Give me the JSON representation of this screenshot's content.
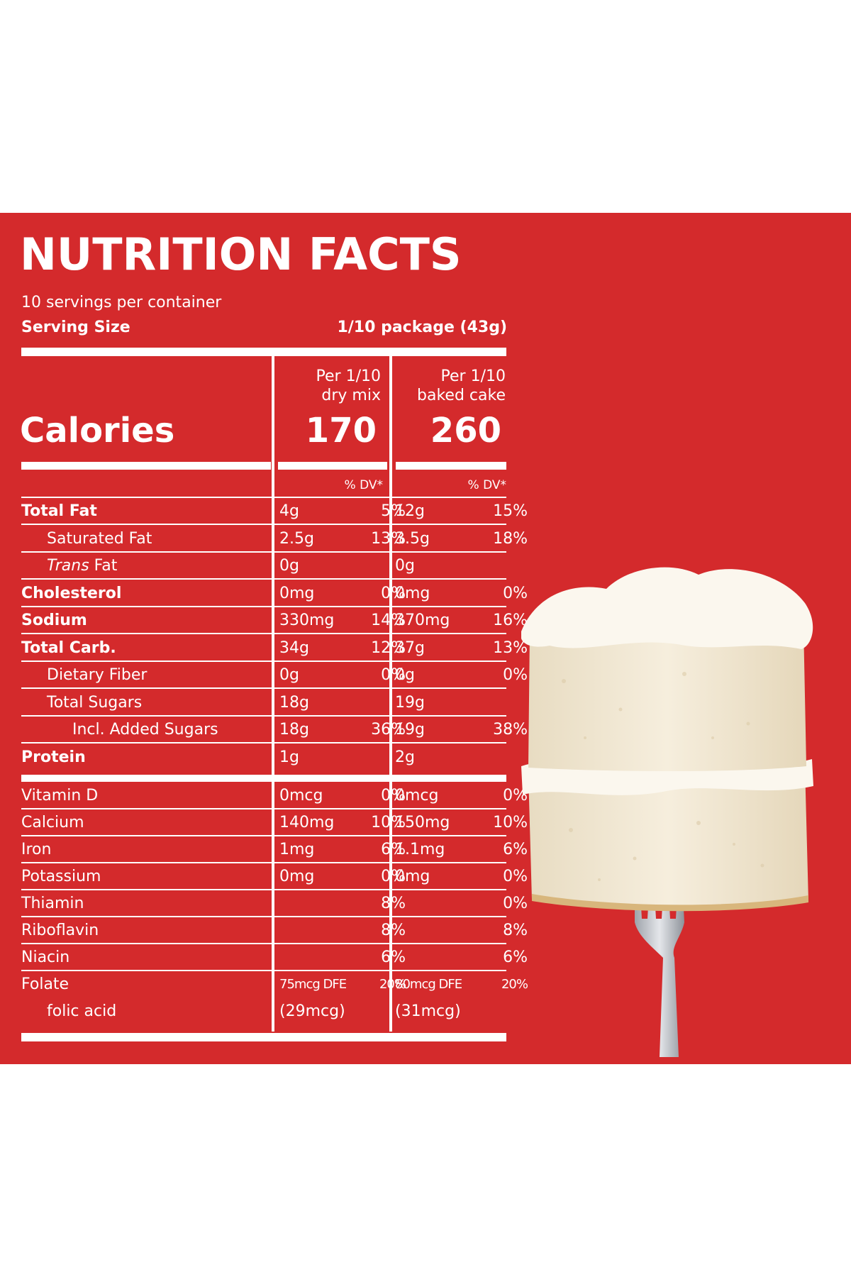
{
  "title": "NUTRITION  FACTS",
  "servings_per_container": "10 servings per container",
  "serving_size_label": "Serving Size",
  "serving_size_value": "1/10 package (43g)",
  "columns": [
    {
      "head_line1": "Per 1/10",
      "head_line2": "dry mix",
      "calories": "170"
    },
    {
      "head_line1": "Per 1/10",
      "head_line2": "baked cake",
      "calories": "260"
    }
  ],
  "calories_label": "Calories",
  "dv_header": "% DV*",
  "nutrients": [
    {
      "name": "Total Fat",
      "style": "bold",
      "indent": 0,
      "dry_amount": "4g",
      "dry_dv": "5%",
      "baked_amount": "12g",
      "baked_dv": "15%"
    },
    {
      "name": "Saturated Fat",
      "style": "normal",
      "indent": 1,
      "dry_amount": "2.5g",
      "dry_dv": "13%",
      "baked_amount": "3.5g",
      "baked_dv": "18%"
    },
    {
      "name_italic": "Trans",
      "name": " Fat",
      "style": "normal",
      "indent": 1,
      "dry_amount": "0g",
      "dry_dv": "",
      "baked_amount": "0g",
      "baked_dv": ""
    },
    {
      "name": "Cholesterol",
      "style": "bold",
      "indent": 0,
      "dry_amount": "0mg",
      "dry_dv": "0%",
      "baked_amount": "0mg",
      "baked_dv": "0%"
    },
    {
      "name": "Sodium",
      "style": "bold",
      "indent": 0,
      "dry_amount": "330mg",
      "dry_dv": "14%",
      "baked_amount": "370mg",
      "baked_dv": "16%"
    },
    {
      "name": "Total Carb.",
      "style": "bold",
      "indent": 0,
      "dry_amount": "34g",
      "dry_dv": "12%",
      "baked_amount": "37g",
      "baked_dv": "13%"
    },
    {
      "name": "Dietary Fiber",
      "style": "normal",
      "indent": 1,
      "dry_amount": "0g",
      "dry_dv": "0%",
      "baked_amount": "0g",
      "baked_dv": "0%"
    },
    {
      "name": "Total Sugars",
      "style": "normal",
      "indent": 1,
      "dry_amount": "18g",
      "dry_dv": "",
      "baked_amount": "19g",
      "baked_dv": ""
    },
    {
      "name": "Incl. Added Sugars",
      "style": "normal",
      "indent": 2,
      "dry_amount": "18g",
      "dry_dv": "36%",
      "baked_amount": "19g",
      "baked_dv": "38%"
    },
    {
      "name": "Protein",
      "style": "bold",
      "indent": 0,
      "dry_amount": "1g",
      "dry_dv": "",
      "baked_amount": "2g",
      "baked_dv": ""
    }
  ],
  "vitamins": [
    {
      "name": "Vitamin D",
      "dry_amount": "0mcg",
      "dry_dv": "0%",
      "baked_amount": "0mcg",
      "baked_dv": "0%"
    },
    {
      "name": "Calcium",
      "dry_amount": "140mg",
      "dry_dv": "10%",
      "baked_amount": "150mg",
      "baked_dv": "10%"
    },
    {
      "name": "Iron",
      "dry_amount": "1mg",
      "dry_dv": "6%",
      "baked_amount": "1.1mg",
      "baked_dv": "6%"
    },
    {
      "name": "Potassium",
      "dry_amount": "0mg",
      "dry_dv": "0%",
      "baked_amount": "0mg",
      "baked_dv": "0%"
    },
    {
      "name": "Thiamin",
      "dry_amount": "",
      "dry_dv": "8%",
      "baked_amount": "",
      "baked_dv": "0%"
    },
    {
      "name": "Riboflavin",
      "dry_amount": "",
      "dry_dv": "8%",
      "baked_amount": "",
      "baked_dv": "8%"
    },
    {
      "name": "Niacin",
      "dry_amount": "",
      "dry_dv": "6%",
      "baked_amount": "",
      "baked_dv": "6%"
    },
    {
      "name": "Folate",
      "dry_amount": "75mcg DFE",
      "dry_dv": "20%",
      "baked_amount": "80mcg DFE",
      "baked_dv": "20%"
    },
    {
      "name": "folic acid",
      "dry_amount": "(29mcg)",
      "dry_dv": "",
      "baked_amount": "(31mcg)",
      "baked_dv": ""
    }
  ],
  "colors": {
    "panel": "#d42a2c",
    "text": "#ffffff",
    "frosting": "#fbf7ee",
    "cake": "#f2e8d4",
    "fork": "#c9ccd1"
  },
  "image": {
    "icon": "cake-on-fork-icon"
  }
}
